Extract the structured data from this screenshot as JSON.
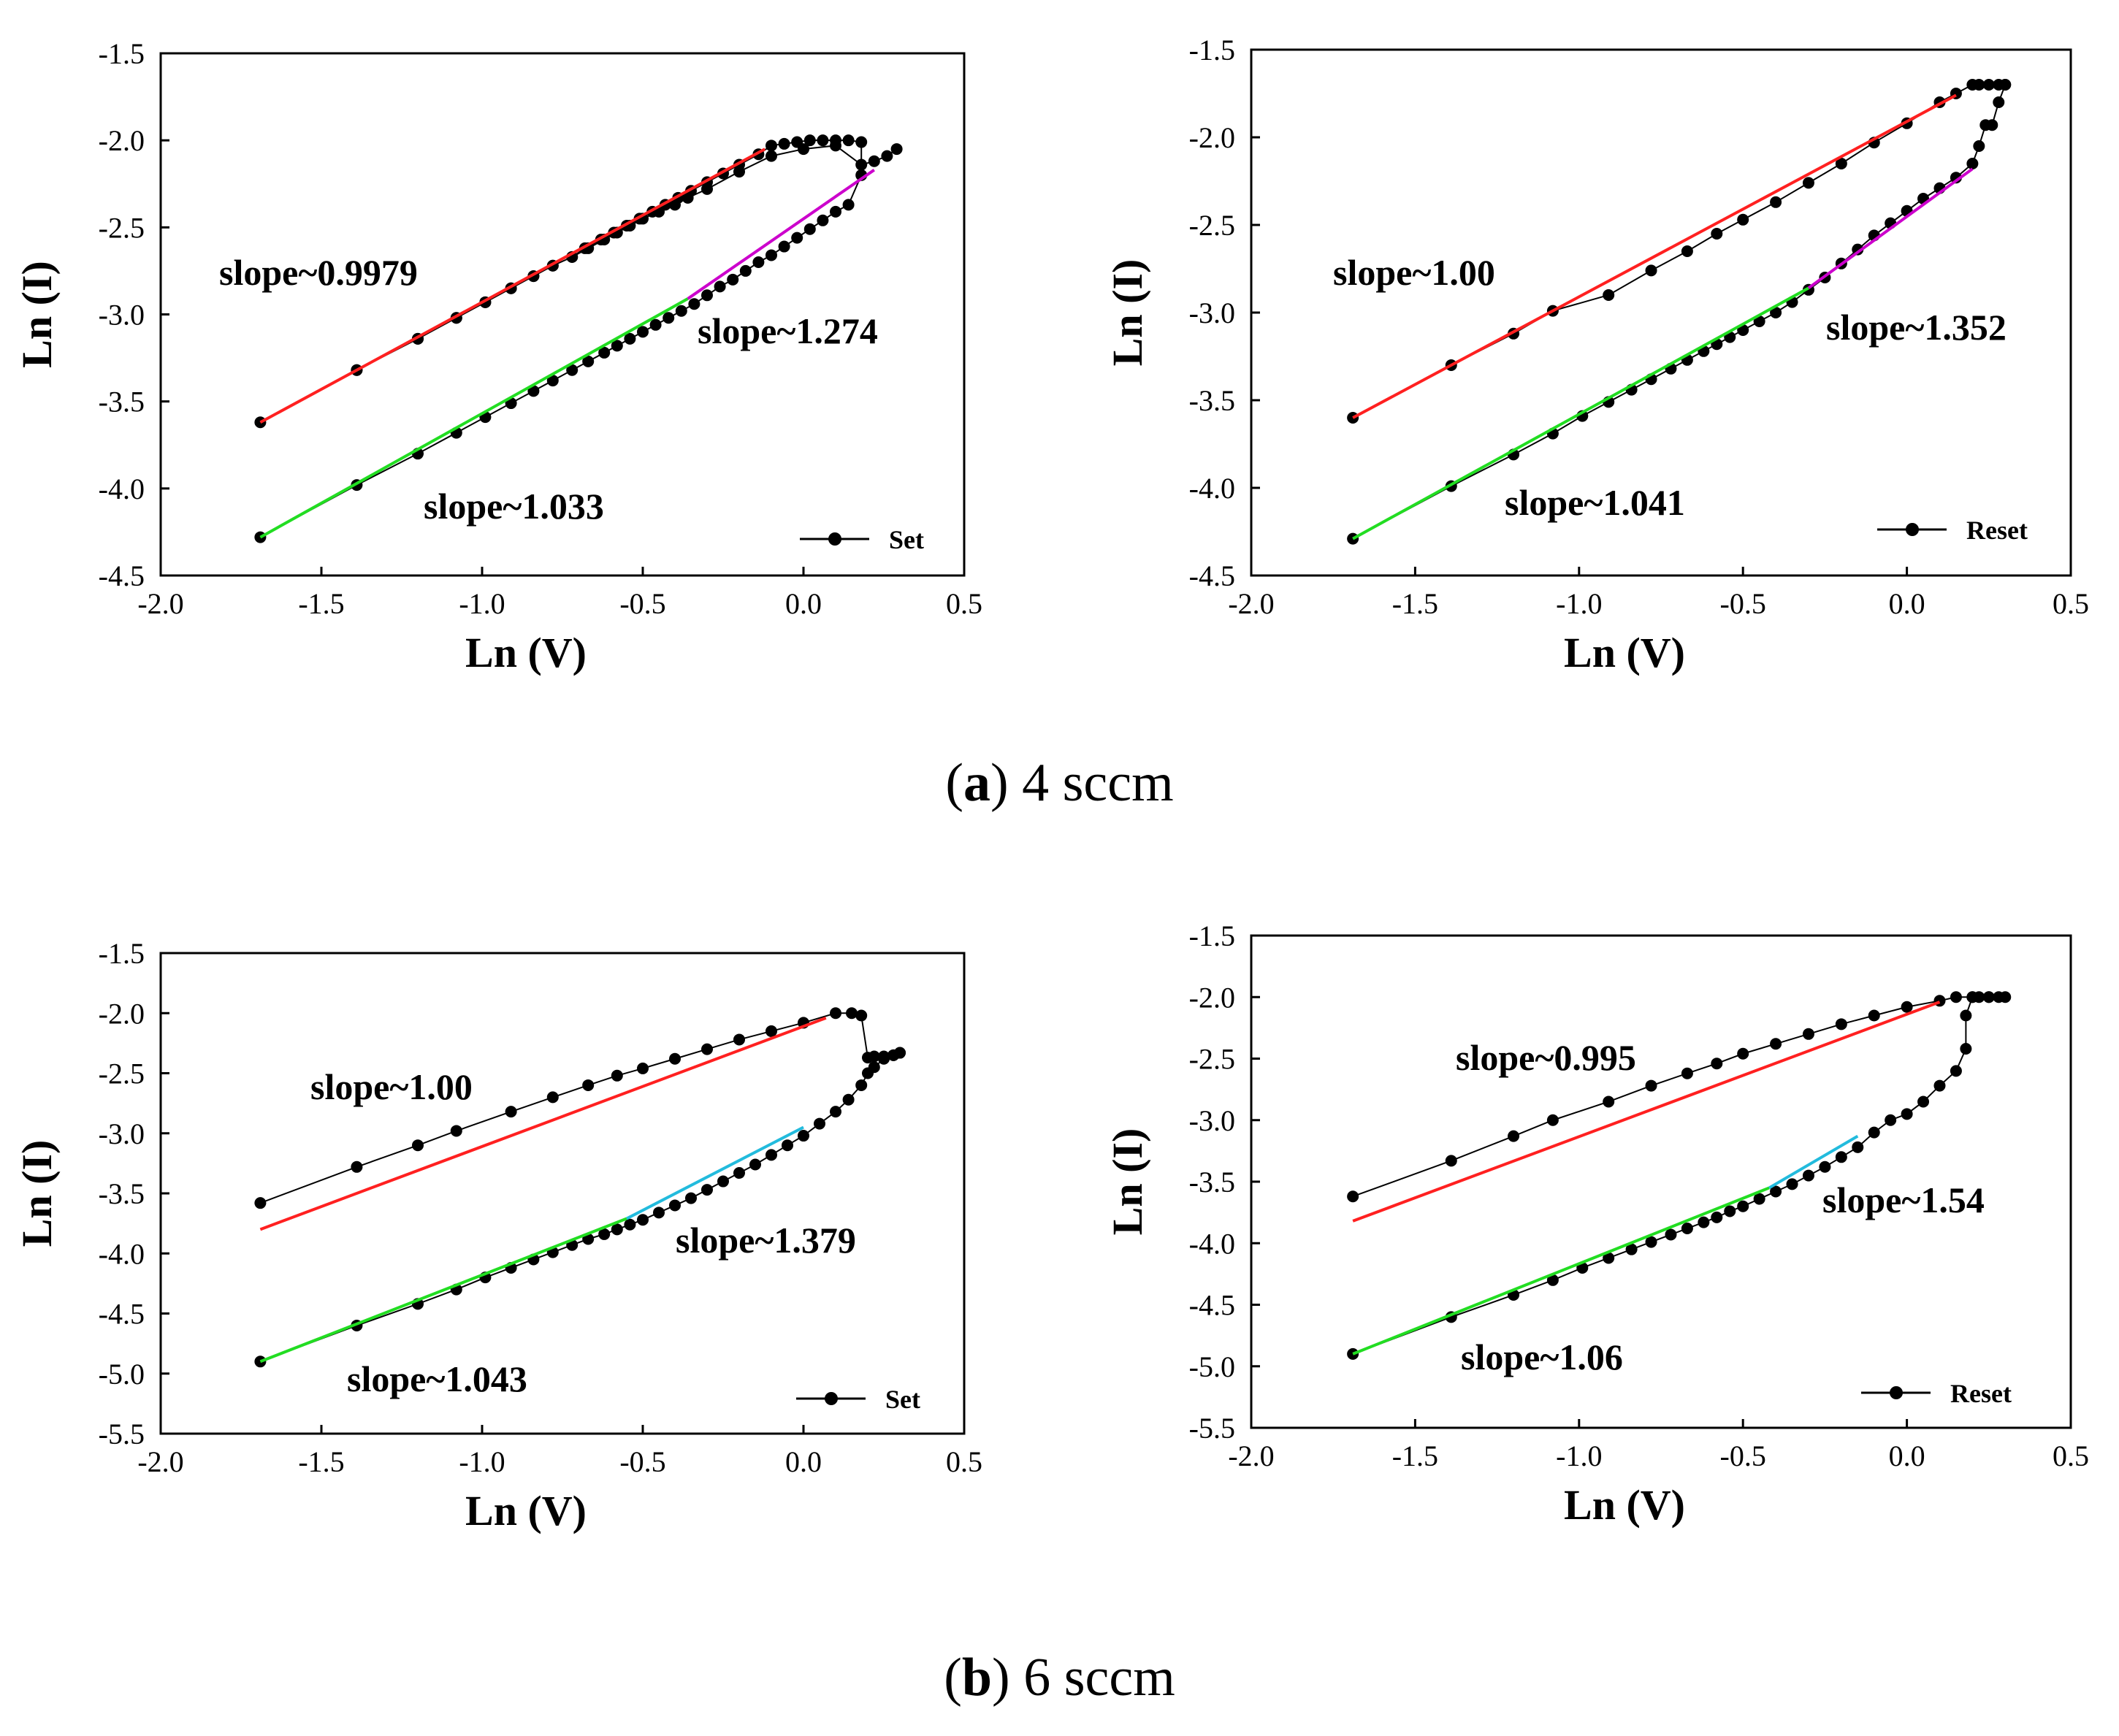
{
  "captions": [
    {
      "letter": "a",
      "text": "4 sccm"
    },
    {
      "letter": "b",
      "text": "6 sccm"
    }
  ],
  "colors": {
    "fit_red": "#ff2020",
    "fit_green": "#22dd22",
    "fit_magenta": "#cc00cc",
    "fit_cyan": "#22bbdd",
    "marker": "#000000"
  },
  "chart_data": [
    {
      "type": "scatter",
      "xlabel": "Ln (V)",
      "ylabel": "Ln (I)",
      "xlim": [
        -2.0,
        0.5
      ],
      "ylim": [
        -4.5,
        -1.5
      ],
      "xticks": [
        -2.0,
        -1.5,
        -1.0,
        -0.5,
        0.0,
        0.5
      ],
      "yticks": [
        -4.5,
        -4.0,
        -3.5,
        -3.0,
        -2.5,
        -2.0,
        -1.5
      ],
      "legend": {
        "label": "Set",
        "position": "bottom-right"
      },
      "series": [
        {
          "name": "Set",
          "color": "marker",
          "x": [
            -1.69,
            -1.39,
            -1.2,
            -1.08,
            -0.99,
            -0.91,
            -0.84,
            -0.78,
            -0.72,
            -0.67,
            -0.62,
            -0.58,
            -0.54,
            -0.5,
            -0.46,
            -0.42,
            -0.38,
            -0.34,
            -0.3,
            -0.26,
            -0.22,
            -0.18,
            -0.14,
            -0.1,
            -0.06,
            -0.02,
            0.02,
            0.06,
            0.1,
            0.14,
            0.18,
            0.18,
            0.14,
            0.1,
            0.06,
            0.02,
            -0.02,
            -0.06,
            -0.1,
            -0.14,
            -0.2,
            -0.25,
            -0.3,
            -0.35,
            -0.39,
            -0.43,
            -0.47,
            -0.51,
            -0.55,
            -0.59,
            -0.63,
            -0.68,
            -0.72,
            -0.78,
            -0.84,
            -0.91,
            -0.99,
            -1.08,
            -1.2,
            -1.39,
            -1.69,
            -1.39,
            -1.2,
            -1.08,
            -0.99,
            -0.91,
            -0.84,
            -0.78,
            -0.72,
            -0.67,
            -0.62,
            -0.58,
            -0.54,
            -0.5,
            -0.45,
            -0.4,
            -0.36,
            -0.3,
            -0.2,
            -0.1,
            0.0,
            0.1,
            0.18,
            0.22,
            0.26,
            0.29
          ],
          "y": [
            -4.28,
            -3.98,
            -3.8,
            -3.68,
            -3.59,
            -3.51,
            -3.44,
            -3.38,
            -3.32,
            -3.27,
            -3.22,
            -3.18,
            -3.14,
            -3.1,
            -3.06,
            -3.02,
            -2.98,
            -2.94,
            -2.89,
            -2.84,
            -2.8,
            -2.75,
            -2.7,
            -2.66,
            -2.61,
            -2.56,
            -2.51,
            -2.46,
            -2.41,
            -2.37,
            -2.2,
            -2.01,
            -2.0,
            -2.0,
            -2.0,
            -2.0,
            -2.01,
            -2.02,
            -2.03,
            -2.08,
            -2.14,
            -2.19,
            -2.24,
            -2.29,
            -2.33,
            -2.37,
            -2.41,
            -2.45,
            -2.49,
            -2.53,
            -2.57,
            -2.62,
            -2.67,
            -2.72,
            -2.78,
            -2.85,
            -2.93,
            -3.02,
            -3.14,
            -3.32,
            -3.62,
            -3.32,
            -3.14,
            -3.02,
            -2.93,
            -2.85,
            -2.78,
            -2.72,
            -2.67,
            -2.62,
            -2.57,
            -2.53,
            -2.49,
            -2.45,
            -2.41,
            -2.37,
            -2.33,
            -2.28,
            -2.18,
            -2.09,
            -2.05,
            -2.03,
            -2.14,
            -2.12,
            -2.09,
            -2.05
          ]
        }
      ],
      "fits": [
        {
          "slope_label": "slope~0.9979",
          "color": "fit_red",
          "x": [
            -1.69,
            -0.12
          ],
          "y": [
            -3.62,
            -2.05
          ]
        },
        {
          "slope_label": "slope~1.033",
          "color": "fit_green",
          "x": [
            -1.69,
            -0.36
          ],
          "y": [
            -4.28,
            -2.91
          ]
        },
        {
          "slope_label": "slope~1.274",
          "color": "fit_magenta",
          "x": [
            -0.36,
            0.22
          ],
          "y": [
            -2.91,
            -2.17
          ]
        }
      ],
      "annotations": [
        "slope~0.9979",
        "slope~1.274",
        "slope~1.033"
      ]
    },
    {
      "type": "scatter",
      "xlabel": "Ln (V)",
      "ylabel": "Ln (I)",
      "xlim": [
        -2.0,
        0.5
      ],
      "ylim": [
        -4.5,
        -1.5
      ],
      "xticks": [
        -2.0,
        -1.5,
        -1.0,
        -0.5,
        0.0,
        0.5
      ],
      "yticks": [
        -4.5,
        -4.0,
        -3.5,
        -3.0,
        -2.5,
        -2.0,
        -1.5
      ],
      "legend": {
        "label": "Reset",
        "position": "bottom-right"
      },
      "series": [
        {
          "name": "Reset",
          "color": "marker",
          "x": [
            -1.69,
            -1.39,
            -1.2,
            -1.08,
            -0.99,
            -0.91,
            -0.84,
            -0.78,
            -0.72,
            -0.67,
            -0.62,
            -0.58,
            -0.54,
            -0.5,
            -0.45,
            -0.4,
            -0.35,
            -0.3,
            -0.25,
            -0.2,
            -0.15,
            -0.1,
            -0.05,
            0.0,
            0.05,
            0.1,
            0.15,
            0.2,
            0.22,
            0.24,
            0.26,
            0.28,
            0.3,
            0.3,
            0.28,
            0.25,
            0.22,
            0.2,
            0.15,
            0.1,
            0.0,
            -0.1,
            -0.2,
            -0.3,
            -0.4,
            -0.5,
            -0.58,
            -0.67,
            -0.78,
            -0.91,
            -1.08,
            -1.2,
            -1.39,
            -1.69
          ],
          "y": [
            -4.29,
            -3.99,
            -3.81,
            -3.69,
            -3.59,
            -3.51,
            -3.44,
            -3.38,
            -3.32,
            -3.27,
            -3.22,
            -3.18,
            -3.14,
            -3.1,
            -3.05,
            -3.0,
            -2.94,
            -2.87,
            -2.8,
            -2.72,
            -2.64,
            -2.56,
            -2.49,
            -2.42,
            -2.35,
            -2.29,
            -2.23,
            -2.15,
            -2.05,
            -1.93,
            -1.93,
            -1.8,
            -1.7,
            -1.7,
            -1.7,
            -1.7,
            -1.7,
            -1.7,
            -1.75,
            -1.8,
            -1.92,
            -2.03,
            -2.15,
            -2.26,
            -2.37,
            -2.47,
            -2.55,
            -2.65,
            -2.76,
            -2.9,
            -2.99,
            -3.12,
            -3.3,
            -3.6
          ]
        }
      ],
      "fits": [
        {
          "slope_label": "slope~1.00",
          "color": "fit_red",
          "x": [
            -1.69,
            0.15
          ],
          "y": [
            -3.6,
            -1.76
          ]
        },
        {
          "slope_label": "slope~1.041",
          "color": "fit_green",
          "x": [
            -1.69,
            -0.3
          ],
          "y": [
            -4.29,
            -2.86
          ]
        },
        {
          "slope_label": "slope~1.352",
          "color": "fit_magenta",
          "x": [
            -0.3,
            0.2
          ],
          "y": [
            -2.86,
            -2.18
          ]
        }
      ],
      "annotations": [
        "slope~1.00",
        "slope~1.352",
        "slope~1.041"
      ]
    },
    {
      "type": "scatter",
      "xlabel": "Ln (V)",
      "ylabel": "Ln (I)",
      "xlim": [
        -2.0,
        0.5
      ],
      "ylim": [
        -5.5,
        -1.5
      ],
      "xticks": [
        -2.0,
        -1.5,
        -1.0,
        -0.5,
        0.0,
        0.5
      ],
      "yticks": [
        -5.5,
        -5.0,
        -4.5,
        -4.0,
        -3.5,
        -3.0,
        -2.5,
        -2.0,
        -1.5
      ],
      "legend": {
        "label": "Set",
        "position": "bottom-right"
      },
      "series": [
        {
          "name": "Set",
          "color": "marker",
          "x": [
            -1.69,
            -1.39,
            -1.2,
            -1.08,
            -0.99,
            -0.91,
            -0.84,
            -0.78,
            -0.72,
            -0.67,
            -0.62,
            -0.58,
            -0.54,
            -0.5,
            -0.45,
            -0.4,
            -0.35,
            -0.3,
            -0.25,
            -0.2,
            -0.15,
            -0.1,
            -0.05,
            0.0,
            0.05,
            0.1,
            0.14,
            0.18,
            0.2,
            0.22,
            0.25,
            0.28,
            0.3,
            0.3,
            0.28,
            0.25,
            0.22,
            0.2,
            0.18,
            0.15,
            0.1,
            0.0,
            -0.1,
            -0.2,
            -0.3,
            -0.4,
            -0.5,
            -0.58,
            -0.67,
            -0.78,
            -0.91,
            -1.08,
            -1.2,
            -1.39,
            -1.69
          ],
          "y": [
            -4.9,
            -4.6,
            -4.42,
            -4.3,
            -4.2,
            -4.12,
            -4.05,
            -3.99,
            -3.93,
            -3.88,
            -3.84,
            -3.8,
            -3.76,
            -3.72,
            -3.66,
            -3.6,
            -3.54,
            -3.47,
            -3.4,
            -3.33,
            -3.26,
            -3.18,
            -3.1,
            -3.02,
            -2.92,
            -2.82,
            -2.72,
            -2.6,
            -2.5,
            -2.45,
            -2.38,
            -2.35,
            -2.33,
            -2.33,
            -2.35,
            -2.36,
            -2.36,
            -2.37,
            -2.02,
            -2.0,
            -2.0,
            -2.08,
            -2.15,
            -2.22,
            -2.3,
            -2.38,
            -2.46,
            -2.52,
            -2.6,
            -2.7,
            -2.82,
            -2.98,
            -3.1,
            -3.28,
            -3.58
          ]
        }
      ],
      "fits": [
        {
          "slope_label": "slope~1.00",
          "color": "fit_red",
          "x": [
            -1.69,
            0.07
          ],
          "y": [
            -3.8,
            -2.04
          ]
        },
        {
          "slope_label": "slope~1.043",
          "color": "fit_green",
          "x": [
            -1.69,
            -0.55
          ],
          "y": [
            -4.9,
            -3.71
          ]
        },
        {
          "slope_label": "slope~1.379",
          "color": "fit_cyan",
          "x": [
            -0.55,
            0.0
          ],
          "y": [
            -3.71,
            -2.95
          ]
        }
      ],
      "annotations": [
        "slope~1.00",
        "slope~1.379",
        "slope~1.043"
      ]
    },
    {
      "type": "scatter",
      "xlabel": "Ln (V)",
      "ylabel": "Ln (I)",
      "xlim": [
        -2.0,
        0.5
      ],
      "ylim": [
        -5.5,
        -1.5
      ],
      "xticks": [
        -2.0,
        -1.5,
        -1.0,
        -0.5,
        0.0,
        0.5
      ],
      "yticks": [
        -5.5,
        -5.0,
        -4.5,
        -4.0,
        -3.5,
        -3.0,
        -2.5,
        -2.0,
        -1.5
      ],
      "legend": {
        "label": "Reset",
        "position": "bottom-right"
      },
      "series": [
        {
          "name": "Reset",
          "color": "marker",
          "x": [
            -1.69,
            -1.39,
            -1.2,
            -1.08,
            -0.99,
            -0.91,
            -0.84,
            -0.78,
            -0.72,
            -0.67,
            -0.62,
            -0.58,
            -0.54,
            -0.5,
            -0.45,
            -0.4,
            -0.35,
            -0.3,
            -0.25,
            -0.2,
            -0.15,
            -0.1,
            -0.05,
            0.0,
            0.05,
            0.1,
            0.15,
            0.18,
            0.18,
            0.2,
            0.22,
            0.25,
            0.28,
            0.3,
            0.25,
            0.2,
            0.15,
            0.1,
            0.0,
            -0.1,
            -0.2,
            -0.3,
            -0.4,
            -0.5,
            -0.58,
            -0.67,
            -0.78,
            -0.91,
            -1.08,
            -1.2,
            -1.39,
            -1.69
          ],
          "y": [
            -4.9,
            -4.6,
            -4.42,
            -4.3,
            -4.2,
            -4.12,
            -4.05,
            -3.99,
            -3.93,
            -3.88,
            -3.83,
            -3.79,
            -3.74,
            -3.7,
            -3.64,
            -3.58,
            -3.52,
            -3.45,
            -3.38,
            -3.3,
            -3.22,
            -3.1,
            -3.0,
            -2.95,
            -2.85,
            -2.72,
            -2.6,
            -2.42,
            -2.15,
            -2.0,
            -2.0,
            -2.0,
            -2.0,
            -2.0,
            -2.0,
            -2.0,
            -2.0,
            -2.03,
            -2.08,
            -2.15,
            -2.22,
            -2.3,
            -2.38,
            -2.46,
            -2.54,
            -2.62,
            -2.72,
            -2.85,
            -3.0,
            -3.13,
            -3.33,
            -3.62
          ]
        }
      ],
      "fits": [
        {
          "slope_label": "slope~0.995",
          "color": "fit_red",
          "x": [
            -1.69,
            0.1
          ],
          "y": [
            -3.82,
            -2.04
          ]
        },
        {
          "slope_label": "slope~1.06",
          "color": "fit_green",
          "x": [
            -1.69,
            -0.42
          ],
          "y": [
            -4.9,
            -3.55
          ]
        },
        {
          "slope_label": "slope~1.54",
          "color": "fit_cyan",
          "x": [
            -0.42,
            -0.15
          ],
          "y": [
            -3.55,
            -3.13
          ]
        }
      ],
      "annotations": [
        "slope~0.995",
        "slope~1.54",
        "slope~1.06"
      ]
    }
  ]
}
